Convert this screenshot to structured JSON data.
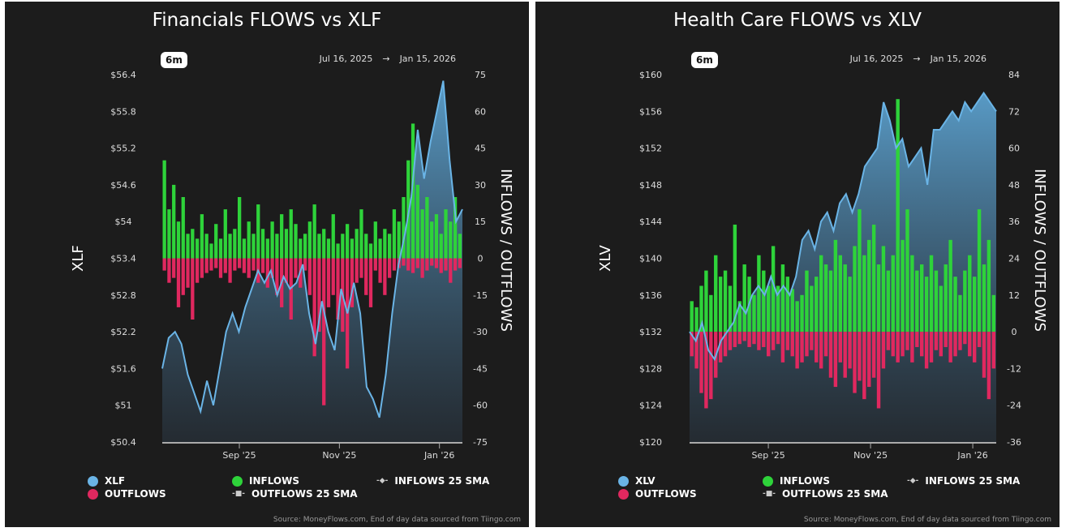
{
  "chart_data": [
    {
      "type": "bar+area",
      "title": "Financials FLOWS vs XLF",
      "range_button": "6m",
      "date_start": "Jul 16, 2025",
      "date_arrow": "→",
      "date_end": "Jan 15, 2026",
      "ylabel_left": "XLF",
      "ylabel_right": "INFLOWS / OUTFLOWS",
      "ylim_left": [
        50.4,
        56.4
      ],
      "yticks_left": [
        "$56.4",
        "$55.8",
        "$55.2",
        "$54.6",
        "$54",
        "$53.4",
        "$52.8",
        "$52.2",
        "$51.6",
        "$51",
        "$50.4"
      ],
      "ylim_right": [
        -75,
        75
      ],
      "yticks_right": [
        "75",
        "60",
        "45",
        "30",
        "15",
        "0",
        "-15",
        "-30",
        "-45",
        "-60",
        "-75"
      ],
      "xticks": [
        {
          "label": "Sep '25",
          "date": "2025-09-01"
        },
        {
          "label": "Nov '25",
          "date": "2025-11-01"
        },
        {
          "label": "Jan '26",
          "date": "2026-01-01"
        }
      ],
      "price": [
        51.6,
        52.1,
        52.2,
        52.0,
        51.5,
        51.2,
        50.9,
        51.4,
        51.0,
        51.6,
        52.2,
        52.5,
        52.2,
        52.6,
        52.9,
        53.2,
        53.0,
        53.2,
        52.8,
        53.1,
        52.9,
        53.0,
        53.3,
        52.5,
        52.0,
        52.7,
        52.2,
        51.9,
        52.9,
        52.5,
        53.0,
        52.5,
        51.3,
        51.1,
        50.8,
        51.5,
        52.5,
        53.3,
        53.8,
        54.4,
        55.5,
        54.7,
        55.3,
        55.8,
        56.3,
        55.0,
        54.0,
        54.2
      ],
      "inflows": [
        40,
        20,
        30,
        15,
        25,
        10,
        12,
        8,
        18,
        10,
        6,
        14,
        8,
        20,
        10,
        12,
        25,
        8,
        15,
        10,
        22,
        12,
        8,
        15,
        10,
        18,
        12,
        20,
        14,
        8,
        10,
        15,
        22,
        10,
        12,
        8,
        18,
        6,
        10,
        14,
        8,
        12,
        20,
        10,
        6,
        15,
        8,
        12,
        10,
        20,
        15,
        25,
        40,
        55,
        30,
        20,
        25,
        15,
        18,
        10,
        20,
        15,
        25,
        10
      ],
      "outflows": [
        -5,
        -10,
        -8,
        -20,
        -15,
        -12,
        -25,
        -10,
        -8,
        -6,
        -5,
        -4,
        -8,
        -6,
        -10,
        -5,
        -4,
        -6,
        -8,
        -5,
        -10,
        -6,
        -12,
        -8,
        -15,
        -20,
        -10,
        -25,
        -8,
        -12,
        -5,
        -15,
        -40,
        -30,
        -60,
        -20,
        -15,
        -25,
        -30,
        -45,
        -20,
        -10,
        -8,
        -15,
        -20,
        -5,
        -10,
        -15,
        -8,
        -5,
        -4,
        -3,
        -5,
        -6,
        -4,
        -8,
        -5,
        -3,
        -4,
        -6,
        -5,
        -10,
        -5,
        -4
      ],
      "legend": [
        "XLF",
        "OUTFLOWS",
        "INFLOWS",
        "OUTFLOWS 25 SMA",
        "INFLOWS 25 SMA"
      ]
    },
    {
      "type": "bar+area",
      "title": "Health Care FLOWS vs XLV",
      "range_button": "6m",
      "date_start": "Jul 16, 2025",
      "date_arrow": "→",
      "date_end": "Jan 15, 2026",
      "ylabel_left": "XLV",
      "ylabel_right": "INFLOWS / OUTFLOWS",
      "ylim_left": [
        120,
        160
      ],
      "yticks_left": [
        "$160",
        "$156",
        "$152",
        "$148",
        "$144",
        "$140",
        "$136",
        "$132",
        "$128",
        "$124",
        "$120"
      ],
      "ylim_right": [
        -36,
        84
      ],
      "yticks_right": [
        "84",
        "72",
        "60",
        "48",
        "36",
        "24",
        "12",
        "0",
        "-12",
        "-24",
        "-36"
      ],
      "xticks": [
        {
          "label": "Sep '25",
          "date": "2025-09-01"
        },
        {
          "label": "Nov '25",
          "date": "2025-11-01"
        },
        {
          "label": "Jan '26",
          "date": "2026-01-01"
        }
      ],
      "price": [
        132,
        131,
        133,
        130,
        129,
        131,
        132,
        133,
        135,
        134,
        136,
        137,
        136,
        138,
        136,
        137,
        136,
        138,
        142,
        143,
        141,
        144,
        145,
        143,
        146,
        147,
        145,
        147,
        150,
        151,
        152,
        157,
        155,
        152,
        153,
        150,
        151,
        152,
        148,
        154,
        154,
        155,
        156,
        155,
        157,
        156,
        157,
        158,
        157,
        156
      ],
      "inflows": [
        10,
        8,
        15,
        20,
        12,
        25,
        18,
        20,
        15,
        35,
        10,
        22,
        18,
        12,
        25,
        20,
        15,
        28,
        15,
        22,
        18,
        14,
        10,
        12,
        20,
        15,
        18,
        25,
        22,
        20,
        30,
        25,
        22,
        18,
        28,
        40,
        25,
        30,
        35,
        22,
        28,
        20,
        25,
        76,
        30,
        40,
        25,
        20,
        22,
        18,
        25,
        20,
        15,
        22,
        30,
        18,
        12,
        20,
        25,
        18,
        40,
        22,
        30,
        12
      ],
      "outflows": [
        -8,
        -12,
        -20,
        -25,
        -22,
        -15,
        -10,
        -8,
        -6,
        -5,
        -4,
        -3,
        -5,
        -4,
        -6,
        -5,
        -8,
        -6,
        -4,
        -10,
        -6,
        -8,
        -12,
        -10,
        -8,
        -6,
        -10,
        -12,
        -8,
        -15,
        -18,
        -10,
        -15,
        -12,
        -20,
        -16,
        -22,
        -18,
        -15,
        -25,
        -12,
        -6,
        -8,
        -10,
        -8,
        -6,
        -10,
        -5,
        -8,
        -12,
        -10,
        -6,
        -8,
        -5,
        -10,
        -8,
        -6,
        -4,
        -8,
        -10,
        -5,
        -15,
        -22,
        -12
      ],
      "legend": [
        "XLV",
        "OUTFLOWS",
        "INFLOWS",
        "OUTFLOWS 25 SMA",
        "INFLOWS 25 SMA"
      ]
    }
  ],
  "source": "Source: MoneyFlows.com, End of day data sourced from Tiingo.com",
  "colors": {
    "price": "#6ab4e6",
    "inflows": "#2ed33a",
    "outflows": "#e0285f",
    "background": "#1c1c1c"
  }
}
